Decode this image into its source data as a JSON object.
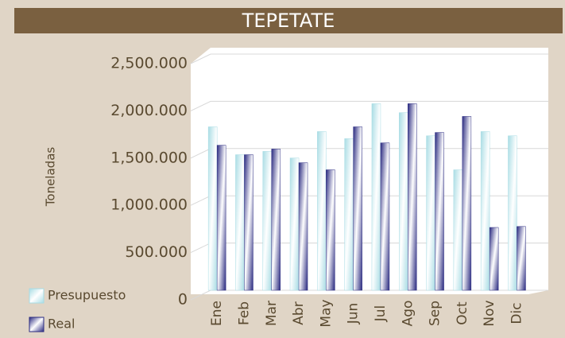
{
  "chart_data": {
    "type": "bar",
    "title": "TEPETATE",
    "y_label": "Toneladas",
    "categories": [
      "Ene",
      "Feb",
      "Mar",
      "Abr",
      "May",
      "Jun",
      "Jul",
      "Ago",
      "Sep",
      "Oct",
      "Nov",
      "Dic"
    ],
    "series": [
      {
        "name": "Presupuesto",
        "color": "#a8dce4",
        "values": [
          1730,
          1435,
          1470,
          1400,
          1680,
          1605,
          1975,
          1880,
          1635,
          1275,
          1680,
          1635
        ]
      },
      {
        "name": "Real",
        "color": "#2a2a80",
        "values": [
          1535,
          1435,
          1495,
          1350,
          1275,
          1730,
          1560,
          1975,
          1670,
          1840,
          665,
          675
        ]
      }
    ],
    "ylim": [
      0,
      2500
    ],
    "yticks": [
      0,
      {
        "value": 500,
        "label": "500.000"
      },
      {
        "value": 1000,
        "label": "1,000.000"
      },
      {
        "value": 1500,
        "label": "1,500.000"
      },
      {
        "value": 2000,
        "label": "2,000.000"
      },
      {
        "value": 2500,
        "label": "2,500.000"
      }
    ],
    "grid": true
  }
}
